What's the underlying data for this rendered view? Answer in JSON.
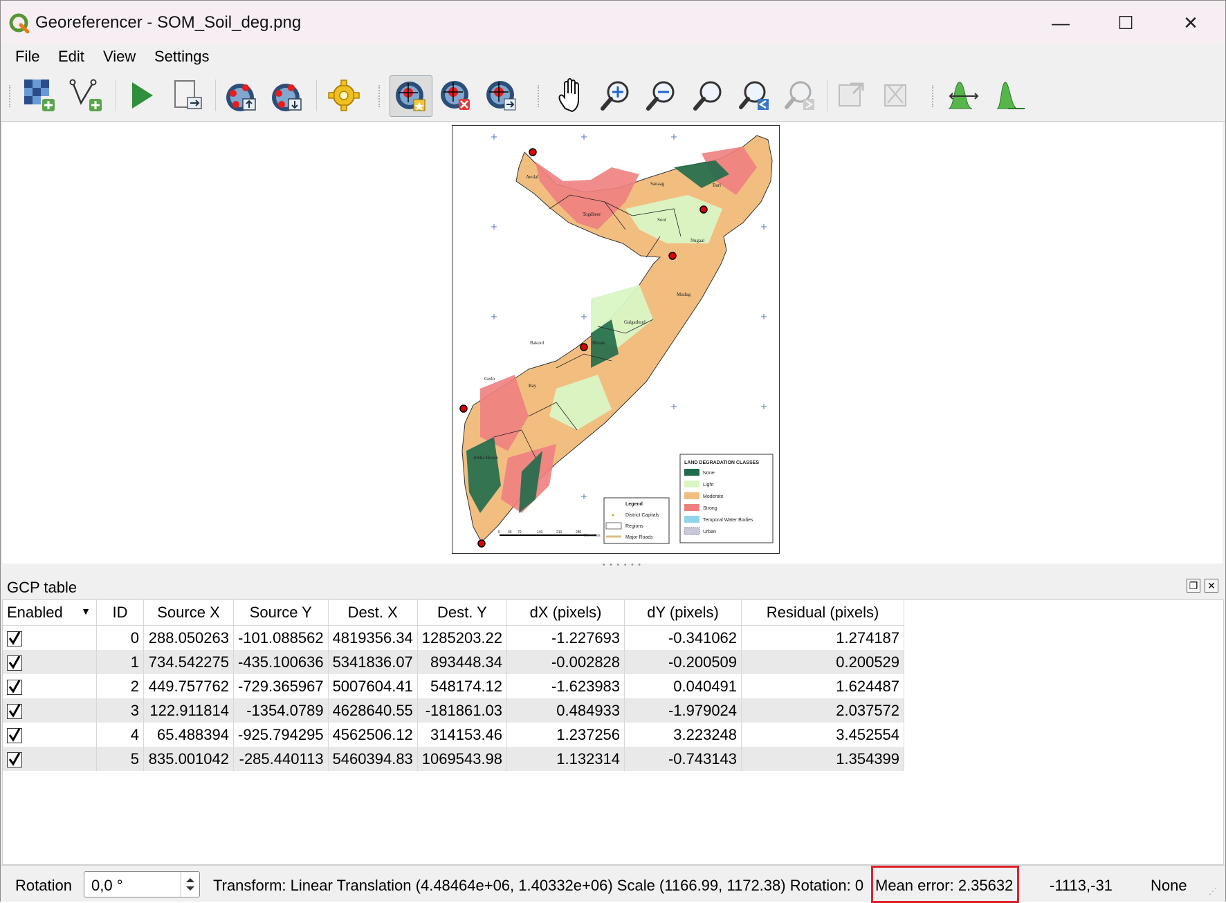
{
  "window": {
    "title": "Georeferencer - SOM_Soil_deg.png",
    "minimize": "—",
    "maximize": "☐",
    "close": "✕"
  },
  "menu": [
    "File",
    "Edit",
    "View",
    "Settings"
  ],
  "toolbar": {
    "buttons": [
      "open-raster-icon",
      "start-georeferencing-icon-v",
      "play-icon",
      "generate-script-icon",
      "load-gcp-icon",
      "save-gcp-icon",
      "settings-gear-icon",
      "add-point-icon",
      "delete-point-icon",
      "move-gcp-icon",
      "pan-icon",
      "zoom-in-icon",
      "zoom-out-icon",
      "zoom-to-layer-icon",
      "zoom-last-icon",
      "zoom-next-icon",
      "link-georef-icon",
      "link-qgis-icon",
      "full-histogram-icon",
      "local-histogram-icon"
    ]
  },
  "map": {
    "legend_title": "LAND DEGRADATION CLASSES",
    "legend_items": [
      "None",
      "Light",
      "Moderate",
      "Strong",
      "Temporal Water Bodies",
      "Urban"
    ],
    "legend_colors": [
      "#1f6b4a",
      "#d9f5c4",
      "#f2be80",
      "#ee7f7f",
      "#8fd6ea",
      "#c8c8d8"
    ],
    "legend2_title": "Legend",
    "legend2_items": [
      "District Capitals",
      "Regions",
      "Major Roads"
    ],
    "scale_unit": "Kilometers",
    "scale_ticks": [
      "0",
      "35",
      "70",
      "140",
      "210",
      "280"
    ],
    "region_labels": [
      "Awdal",
      "Sanaag",
      "Bari",
      "Togdheer",
      "Sool",
      "Nugaal",
      "Mudug",
      "Galgaduud",
      "Hiraan",
      "Bakool",
      "Gedo",
      "Bay",
      "Jubba Hoose"
    ]
  },
  "gcp": {
    "title": "GCP table",
    "columns": [
      "Enabled",
      "ID",
      "Source X",
      "Source Y",
      "Dest. X",
      "Dest. Y",
      "dX (pixels)",
      "dY (pixels)",
      "Residual (pixels)"
    ],
    "rows": [
      {
        "id": "0",
        "sx": "288.050263",
        "sy": "-101.088562",
        "dx_": "4819356.34",
        "dy_": "1285203.22",
        "dxp": "-1.227693",
        "dyp": "-0.341062",
        "res": "1.274187"
      },
      {
        "id": "1",
        "sx": "734.542275",
        "sy": "-435.100636",
        "dx_": "5341836.07",
        "dy_": "893448.34",
        "dxp": "-0.002828",
        "dyp": "-0.200509",
        "res": "0.200529"
      },
      {
        "id": "2",
        "sx": "449.757762",
        "sy": "-729.365967",
        "dx_": "5007604.41",
        "dy_": "548174.12",
        "dxp": "-1.623983",
        "dyp": "0.040491",
        "res": "1.624487"
      },
      {
        "id": "3",
        "sx": "122.911814",
        "sy": "-1354.0789",
        "dx_": "4628640.55",
        "dy_": "-181861.03",
        "dxp": "0.484933",
        "dyp": "-1.979024",
        "res": "2.037572"
      },
      {
        "id": "4",
        "sx": "65.488394",
        "sy": "-925.794295",
        "dx_": "4562506.12",
        "dy_": "314153.46",
        "dxp": "1.237256",
        "dyp": "3.223248",
        "res": "3.452554"
      },
      {
        "id": "5",
        "sx": "835.001042",
        "sy": "-285.440113",
        "dx_": "5460394.83",
        "dy_": "1069543.98",
        "dxp": "1.132314",
        "dyp": "-0.743143",
        "res": "1.354399"
      }
    ]
  },
  "status": {
    "rotation_label": "Rotation",
    "rotation_value": "0,0 °",
    "transform": "Transform: Linear Translation (4.48464e+06, 1.40332e+06) Scale (1166.99, 1172.38) Rotation: 0",
    "mean_error": "Mean error: 2.35632",
    "coords": "-1113,-31",
    "crs": "None"
  }
}
